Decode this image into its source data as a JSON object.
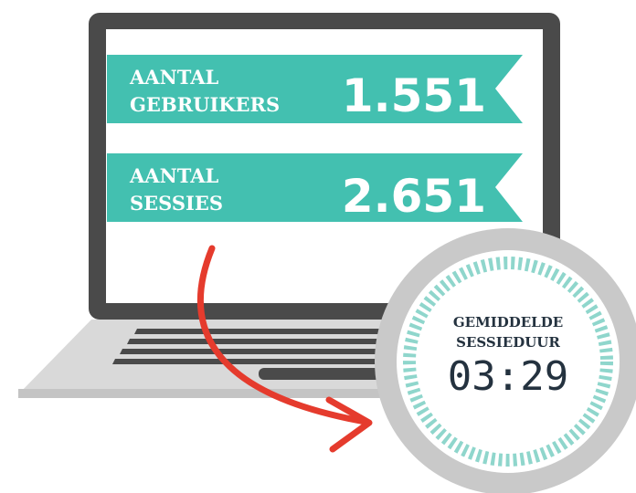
{
  "stats": [
    {
      "label_lines": [
        "AANTAL",
        "GEBRUIKERS"
      ],
      "value": "1.551"
    },
    {
      "label_lines": [
        "AANTAL",
        "SESSIES"
      ],
      "value": "2.651"
    }
  ],
  "timer": {
    "label_lines": [
      "GEMIDDELDE",
      "SESSIEDUUR"
    ],
    "value": "03:29"
  }
}
